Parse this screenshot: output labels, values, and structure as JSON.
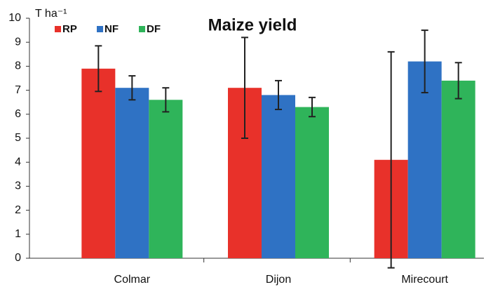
{
  "chart_data": {
    "type": "bar",
    "title": "Maize yield",
    "y_label": "T ha⁻¹",
    "categories": [
      "Colmar",
      "Dijon",
      "Mirecourt"
    ],
    "series": [
      {
        "name": "RP",
        "color": "#e8312a",
        "values": [
          7.9,
          7.1,
          4.1
        ],
        "errors": [
          0.95,
          2.1,
          4.5
        ]
      },
      {
        "name": "NF",
        "color": "#2f72c4",
        "values": [
          7.1,
          6.8,
          8.2
        ],
        "errors": [
          0.5,
          0.6,
          1.3
        ]
      },
      {
        "name": "DF",
        "color": "#2fb45a",
        "values": [
          6.6,
          6.3,
          7.4
        ],
        "errors": [
          0.5,
          0.4,
          0.75
        ]
      }
    ],
    "ylim": [
      0,
      10
    ],
    "yticks": [
      0,
      1,
      2,
      3,
      4,
      5,
      6,
      7,
      8,
      9,
      10
    ],
    "grid": false
  }
}
